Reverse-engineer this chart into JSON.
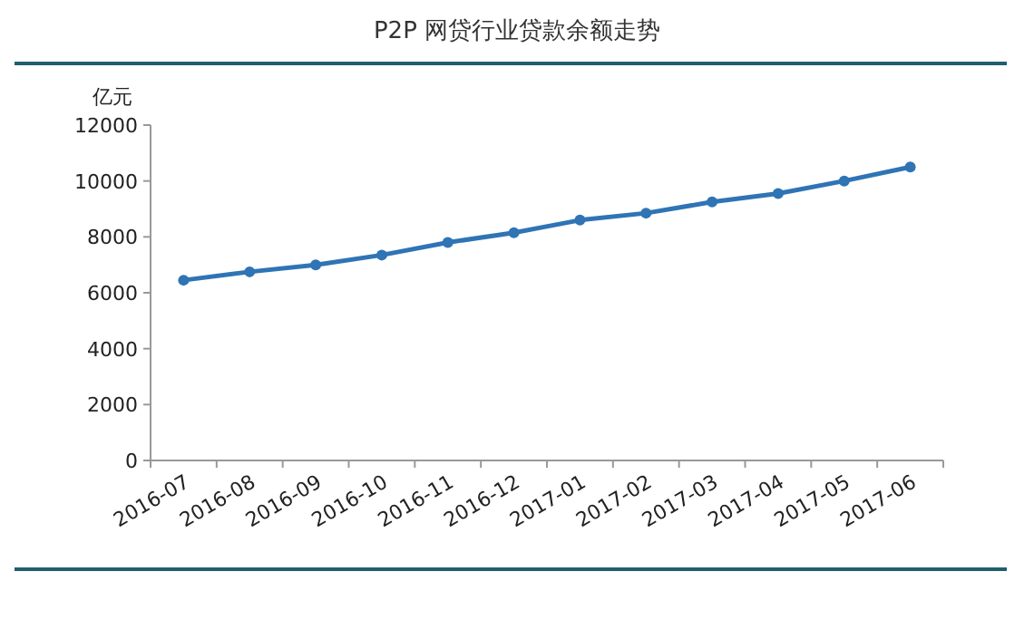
{
  "chart_data": {
    "type": "line",
    "title": "P2P 网贷行业贷款余额走势",
    "ylabel": "亿元",
    "categories": [
      "2016-07",
      "2016-08",
      "2016-09",
      "2016-10",
      "2016-11",
      "2016-12",
      "2017-01",
      "2017-02",
      "2017-03",
      "2017-04",
      "2017-05",
      "2017-06"
    ],
    "series": [
      {
        "color": "#2f74b5",
        "values": [
          6450,
          6750,
          7000,
          7350,
          7800,
          8150,
          8600,
          8850,
          9250,
          9550,
          10000,
          10500
        ]
      }
    ],
    "ylim": [
      0,
      12000
    ],
    "yticks": [
      0,
      2000,
      4000,
      6000,
      8000,
      10000,
      12000
    ],
    "marker": "circle",
    "line_style": "solid",
    "grid": false
  }
}
